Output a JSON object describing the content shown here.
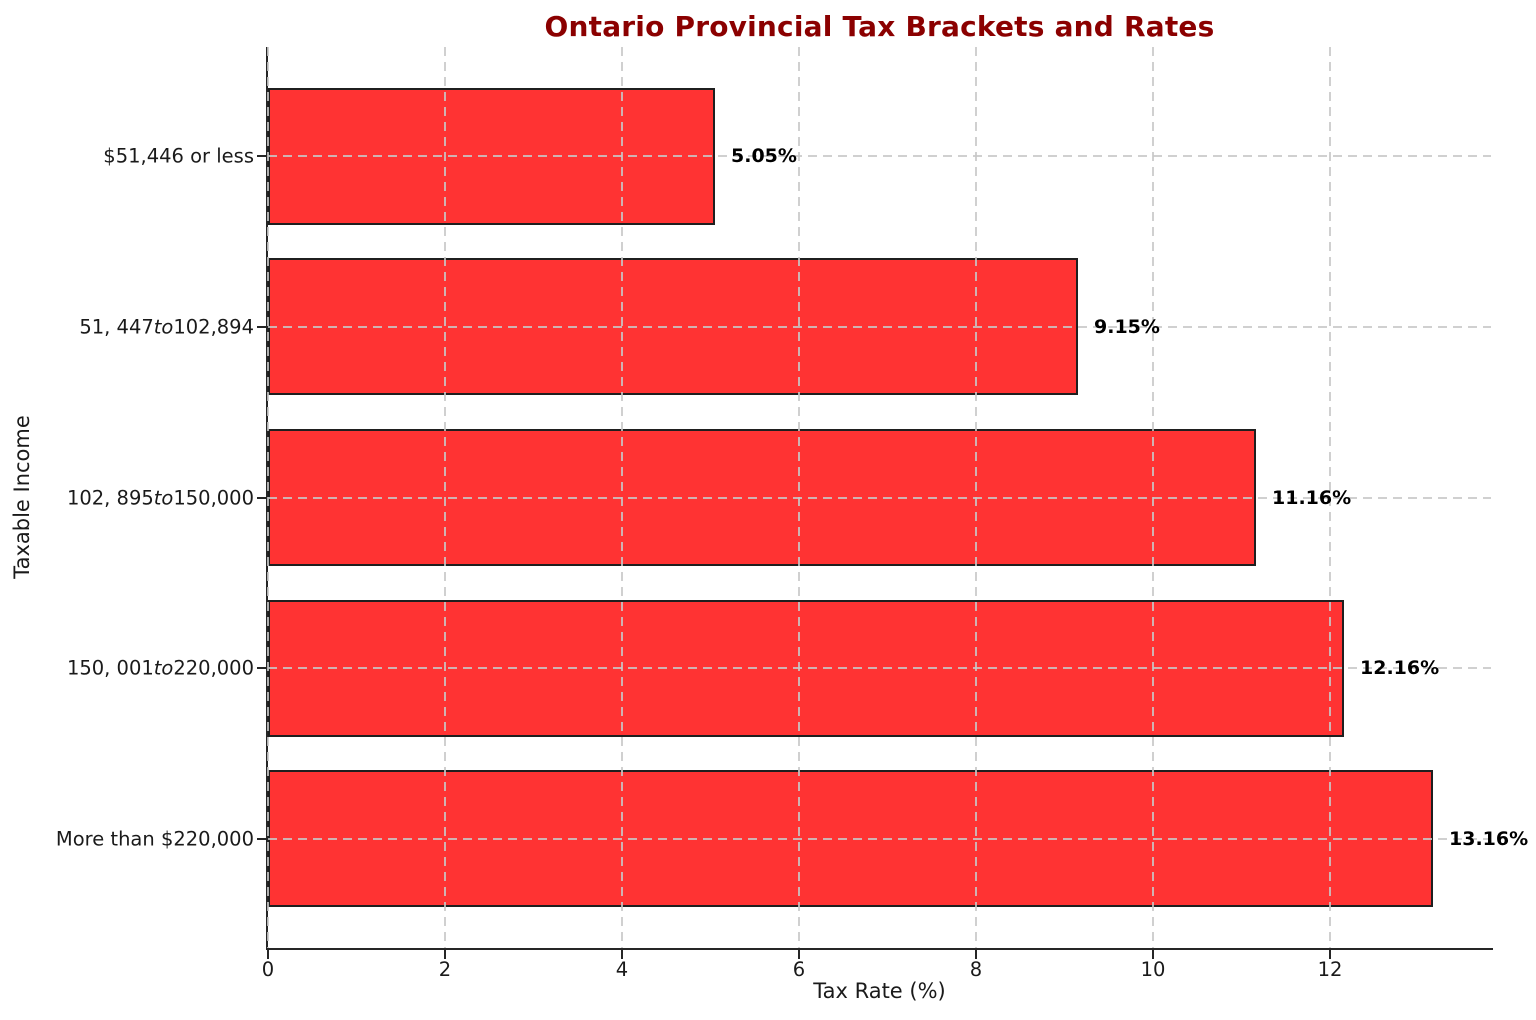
{
  "chart_data": {
    "type": "bar",
    "orientation": "horizontal",
    "title": "Ontario Provincial Tax Brackets and Rates",
    "title_color": "#8B0000",
    "xlabel": "Tax Rate (%)",
    "ylabel": "Taxable Income",
    "categories": [
      {
        "segments": [
          {
            "text": "$51,446 or less",
            "italic": false
          }
        ]
      },
      {
        "segments": [
          {
            "text": "51, 447",
            "italic": false
          },
          {
            "text": "to",
            "italic": true
          },
          {
            "text": "102,894",
            "italic": false
          }
        ]
      },
      {
        "segments": [
          {
            "text": "102, 895",
            "italic": false
          },
          {
            "text": "to",
            "italic": true
          },
          {
            "text": "150,000",
            "italic": false
          }
        ]
      },
      {
        "segments": [
          {
            "text": "150, 001",
            "italic": false
          },
          {
            "text": "to",
            "italic": true
          },
          {
            "text": "220,000",
            "italic": false
          }
        ]
      },
      {
        "segments": [
          {
            "text": "More than $220,000",
            "italic": false
          }
        ]
      }
    ],
    "values": [
      5.05,
      9.15,
      11.16,
      12.16,
      13.16
    ],
    "value_labels": [
      "5.05%",
      "9.15%",
      "11.16%",
      "12.16%",
      "13.16%"
    ],
    "xticks": [
      0,
      2,
      4,
      6,
      8,
      10,
      12
    ],
    "xlim": [
      0,
      13.82
    ],
    "bar_color": "#FF3333",
    "bar_edge_color": "#1f1f1f",
    "grid": true,
    "grid_style": "dashed",
    "grid_color": "#c8c8c8",
    "legend": "none"
  }
}
